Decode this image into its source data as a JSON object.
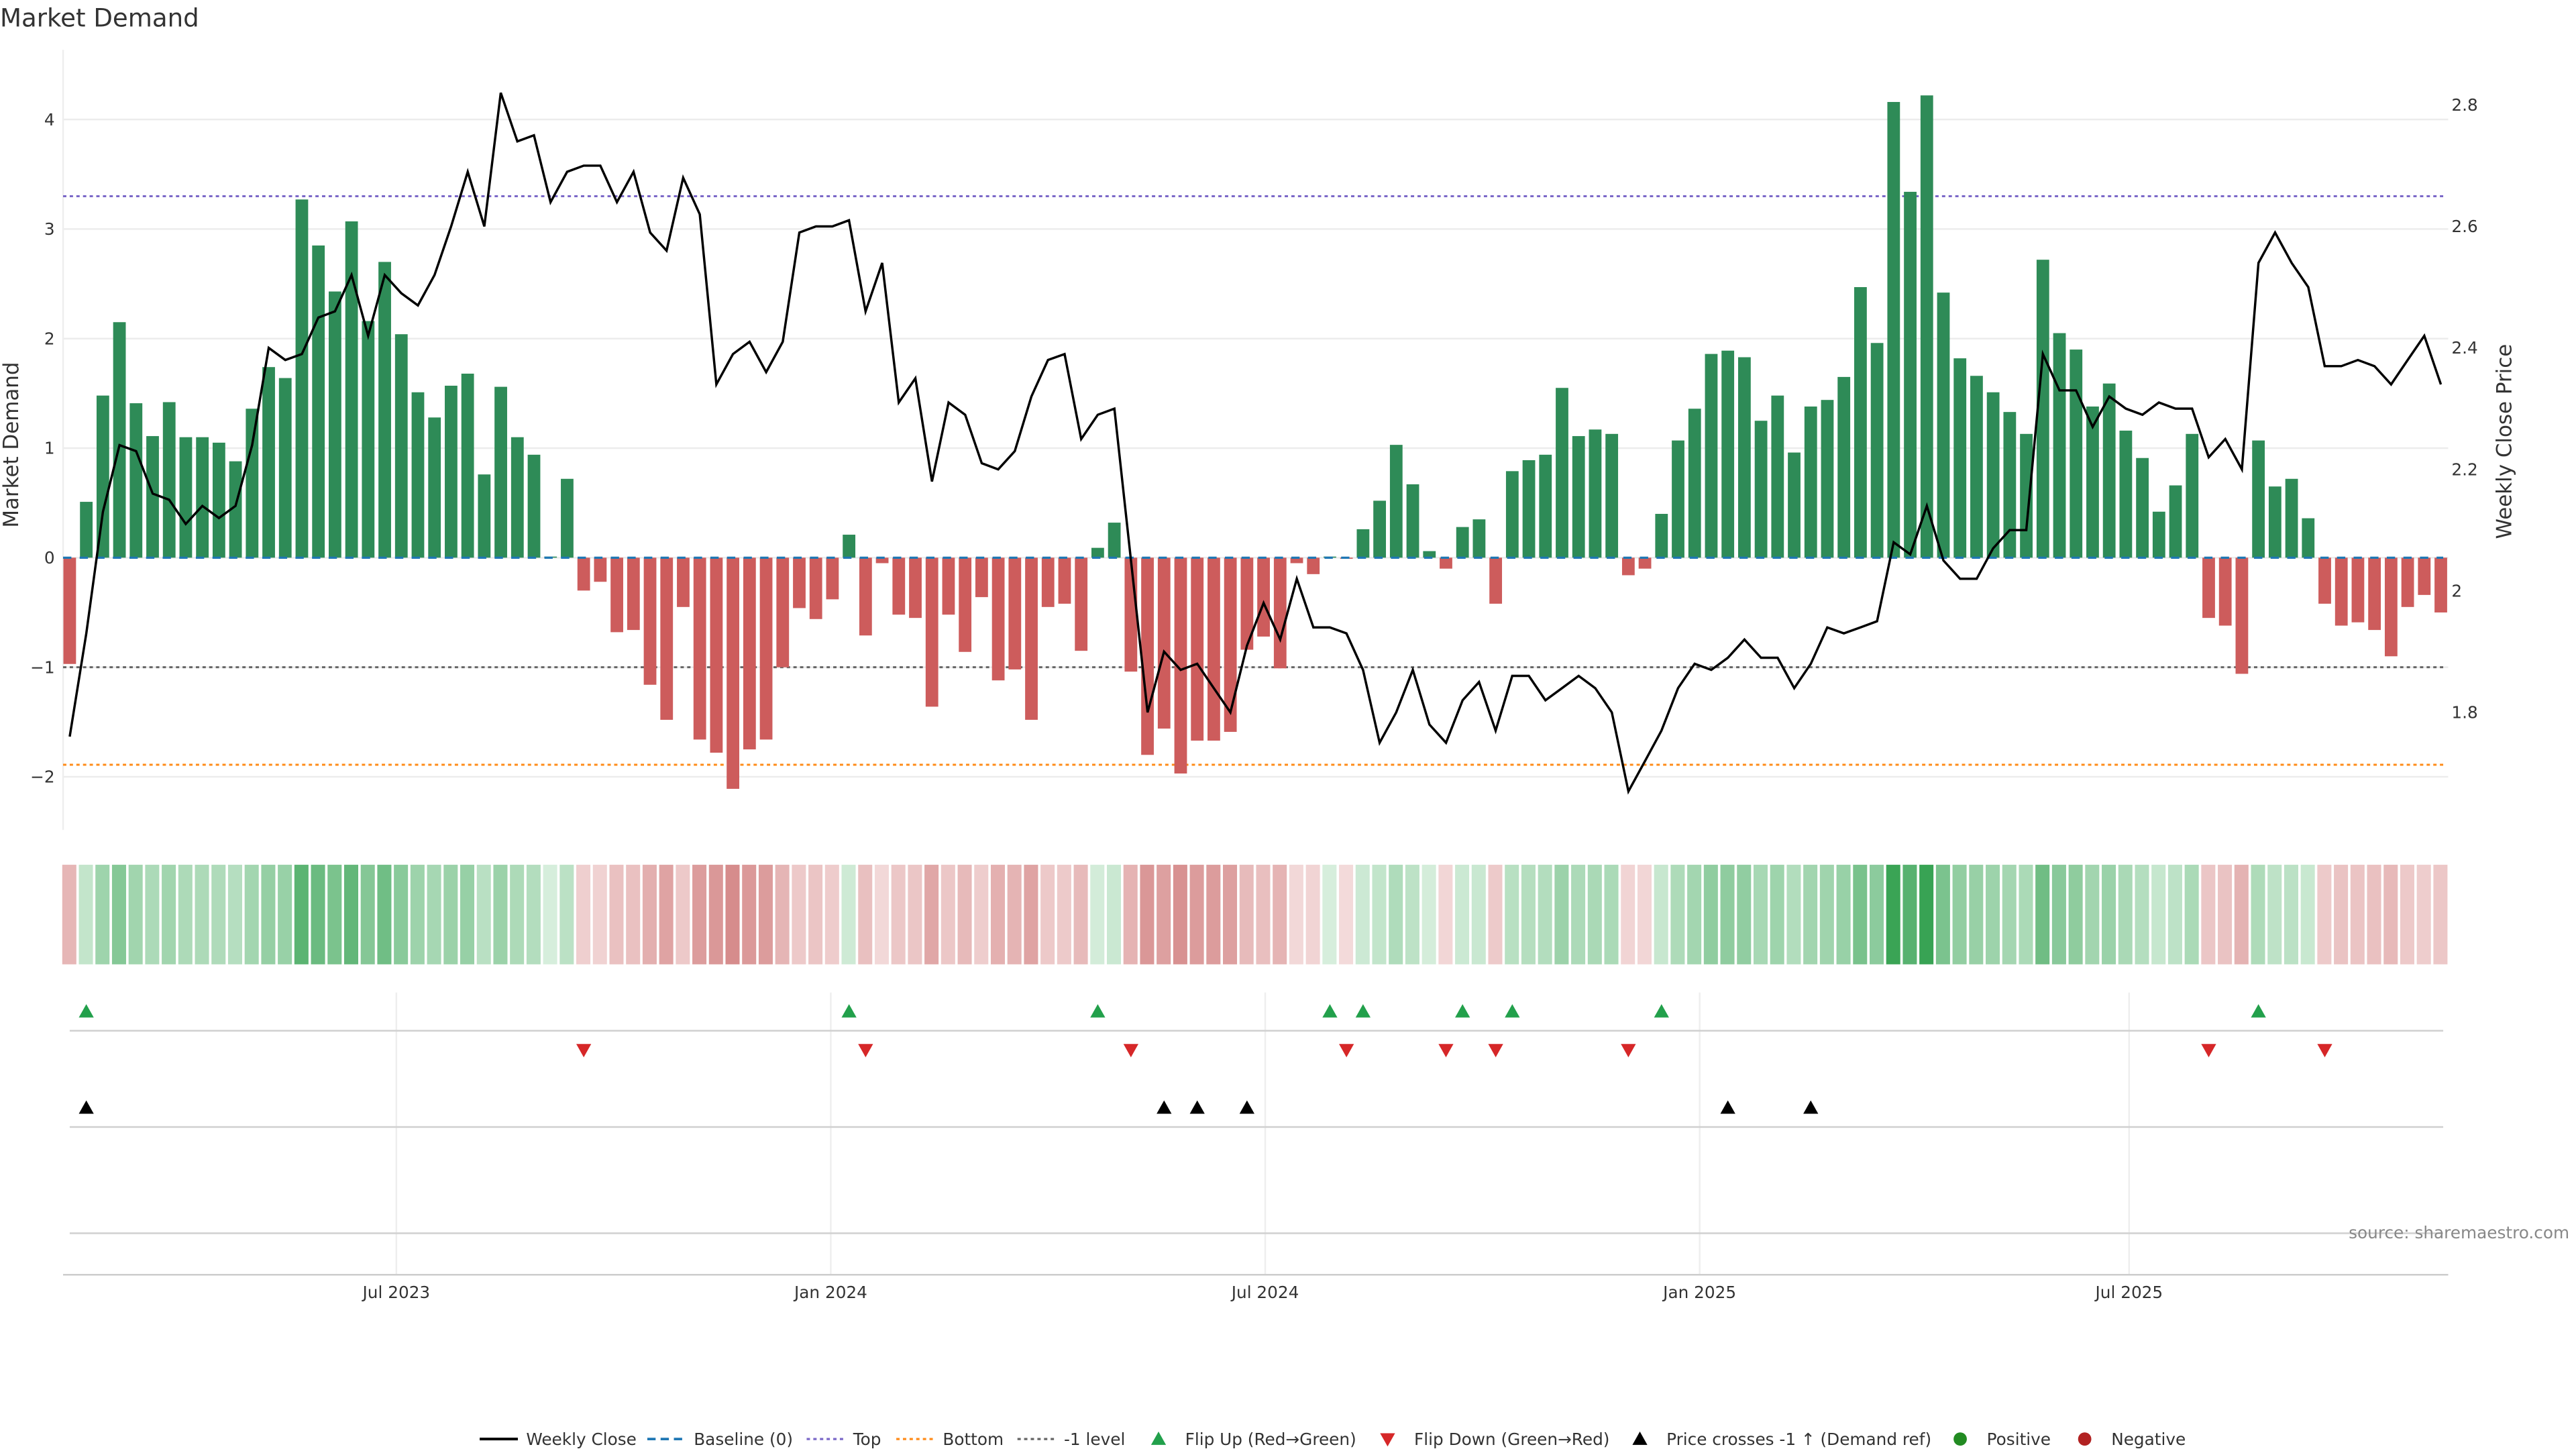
{
  "title": "Market Demand",
  "source": "source: sharemaestro.com",
  "chart_data": {
    "type": "bar",
    "title": "Market Demand",
    "xlabel": "",
    "ylabel": "Market Demand",
    "y2label": "Weekly Close Price",
    "ylim": [
      -2.5,
      4.6
    ],
    "y2lim": [
      1.63,
      2.88
    ],
    "yticks": [
      -2,
      -1,
      0,
      1,
      2,
      3,
      4
    ],
    "yticks_labels": [
      "−2",
      "−1",
      "0",
      "1",
      "2",
      "3",
      "4"
    ],
    "y2ticks": [
      1.8,
      2.0,
      2.2,
      2.4,
      2.6,
      2.8
    ],
    "y2ticks_labels": [
      "1.8",
      "2",
      "2.2",
      "2.4",
      "2.6",
      "2.8"
    ],
    "x_ticks": [
      {
        "label": "Jul 2023",
        "week_index": 19.7
      },
      {
        "label": "Jan 2024",
        "week_index": 45.9
      },
      {
        "label": "Jul 2024",
        "week_index": 72.1
      },
      {
        "label": "Jan 2025",
        "week_index": 98.3
      },
      {
        "label": "Jul 2025",
        "week_index": 124.2
      }
    ],
    "grid": true,
    "legend_position": "bottom-center",
    "reference_lines": {
      "top": 3.3,
      "baseline": 0,
      "minus_one": -1,
      "bottom": -1.89
    },
    "demand": [
      -0.97,
      0.51,
      1.48,
      2.15,
      1.41,
      1.11,
      1.42,
      1.1,
      1.1,
      1.05,
      0.88,
      1.36,
      1.74,
      1.64,
      3.27,
      2.85,
      2.43,
      3.07,
      2.16,
      2.7,
      2.04,
      1.51,
      1.28,
      1.57,
      1.68,
      0.76,
      1.56,
      1.1,
      0.94,
      0.01,
      0.72,
      -0.3,
      -0.22,
      -0.68,
      -0.66,
      -1.16,
      -1.48,
      -0.45,
      -1.66,
      -1.78,
      -2.11,
      -1.75,
      -1.66,
      -1.0,
      -0.46,
      -0.56,
      -0.38,
      0.21,
      -0.71,
      -0.05,
      -0.52,
      -0.55,
      -1.36,
      -0.52,
      -0.86,
      -0.36,
      -1.12,
      -1.02,
      -1.48,
      -0.45,
      -0.42,
      -0.85,
      0.09,
      0.32,
      -1.04,
      -1.8,
      -1.56,
      -1.97,
      -1.67,
      -1.67,
      -1.59,
      -0.84,
      -0.72,
      -1.01,
      -0.05,
      -0.15,
      0.01,
      -0.01,
      0.26,
      0.52,
      1.03,
      0.67,
      0.06,
      -0.1,
      0.28,
      0.35,
      -0.42,
      0.79,
      0.89,
      0.94,
      1.55,
      1.11,
      1.17,
      1.13,
      -0.16,
      -0.1,
      0.4,
      1.07,
      1.36,
      1.86,
      1.89,
      1.83,
      1.25,
      1.48,
      0.96,
      1.38,
      1.44,
      1.65,
      2.47,
      1.96,
      4.16,
      3.34,
      4.22,
      2.42,
      1.82,
      1.66,
      1.51,
      1.33,
      1.13,
      2.72,
      2.05,
      1.9,
      1.38,
      1.59,
      1.16,
      0.91,
      0.42,
      0.66,
      1.13,
      -0.55,
      -0.62,
      -1.06,
      1.07,
      0.65,
      0.72,
      0.36,
      -0.42,
      -0.62,
      -0.59,
      -0.66,
      -0.9,
      -0.45,
      -0.34,
      -0.5
    ],
    "weekly_close": [
      1.76,
      1.93,
      2.13,
      2.24,
      2.23,
      2.16,
      2.15,
      2.11,
      2.14,
      2.12,
      2.14,
      2.24,
      2.4,
      2.38,
      2.39,
      2.45,
      2.46,
      2.52,
      2.42,
      2.52,
      2.49,
      2.47,
      2.52,
      2.6,
      2.69,
      2.6,
      2.82,
      2.74,
      2.75,
      2.64,
      2.69,
      2.7,
      2.7,
      2.64,
      2.69,
      2.59,
      2.56,
      2.68,
      2.62,
      2.34,
      2.39,
      2.41,
      2.36,
      2.41,
      2.59,
      2.6,
      2.6,
      2.61,
      2.46,
      2.54,
      2.31,
      2.35,
      2.18,
      2.31,
      2.29,
      2.21,
      2.2,
      2.23,
      2.32,
      2.38,
      2.39,
      2.25,
      2.29,
      2.3,
      2.05,
      1.8,
      1.9,
      1.87,
      1.88,
      1.84,
      1.8,
      1.91,
      1.98,
      1.92,
      2.02,
      1.94,
      1.94,
      1.93,
      1.87,
      1.75,
      1.8,
      1.87,
      1.78,
      1.75,
      1.82,
      1.85,
      1.77,
      1.86,
      1.86,
      1.82,
      1.84,
      1.86,
      1.84,
      1.8,
      1.67,
      1.72,
      1.77,
      1.84,
      1.88,
      1.87,
      1.89,
      1.92,
      1.89,
      1.89,
      1.84,
      1.88,
      1.94,
      1.93,
      1.94,
      1.95,
      2.08,
      2.06,
      2.14,
      2.05,
      2.02,
      2.02,
      2.07,
      2.1,
      2.1,
      2.39,
      2.33,
      2.33,
      2.27,
      2.32,
      2.3,
      2.29,
      2.31,
      2.3,
      2.3,
      2.22,
      2.25,
      2.2,
      2.54,
      2.59,
      2.54,
      2.5,
      2.37,
      2.37,
      2.38,
      2.37,
      2.34,
      2.38,
      2.42,
      2.34
    ],
    "flip_up_weeks": [
      1,
      47,
      62,
      76,
      78,
      84,
      87,
      96,
      132
    ],
    "flip_down_weeks": [
      31,
      48,
      64,
      77,
      83,
      86,
      94,
      129,
      136
    ],
    "price_cross_weeks": [
      1,
      66,
      68,
      71,
      100,
      105
    ]
  },
  "legend": [
    {
      "label": "Weekly Close",
      "kind": "line",
      "color": "#000000"
    },
    {
      "label": "Baseline (0)",
      "kind": "dash",
      "color": "#1f77b4"
    },
    {
      "label": "Top",
      "kind": "dot",
      "color": "#7b68c8"
    },
    {
      "label": "Bottom",
      "kind": "dot",
      "color": "#ff8c1a"
    },
    {
      "label": "-1 level",
      "kind": "dot",
      "color": "#666666"
    },
    {
      "label": "Flip Up (Red→Green)",
      "kind": "tri-up",
      "color": "#22a04b"
    },
    {
      "label": "Flip Down (Green→Red)",
      "kind": "tri-down",
      "color": "#d62728"
    },
    {
      "label": "Price crosses -1 ↑ (Demand ref)",
      "kind": "tri-up",
      "color": "#000000"
    },
    {
      "label": "Positive",
      "kind": "dot-marker",
      "color": "#228b22"
    },
    {
      "label": "Negative",
      "kind": "dot-marker",
      "color": "#b22222"
    }
  ],
  "colors": {
    "positive": "#2e8b57",
    "negative": "#cd5c5c"
  }
}
